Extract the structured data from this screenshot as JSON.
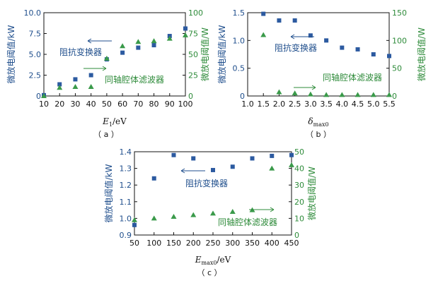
{
  "colors": {
    "primary": "#2c5aa0",
    "secondary": "#3a9a4a"
  },
  "chart_data": [
    {
      "type": "scatter",
      "caption": "（ a ）",
      "xlabel": {
        "main": "E",
        "sub": "1",
        "unit": "/eV"
      },
      "ylabel_left": "微放电阈值/kW",
      "ylabel_right": "微放电阈值/W",
      "xlim": [
        10,
        100
      ],
      "ylim_left": [
        0,
        10
      ],
      "ylim_right": [
        0,
        100
      ],
      "x_ticks": [
        "10",
        "20",
        "30",
        "40",
        "50",
        "60",
        "70",
        "80",
        "90",
        "100"
      ],
      "y_left_ticks": [
        "0",
        "2.5",
        "5.0",
        "7.5",
        "10.0"
      ],
      "y_right_ticks": [
        "0",
        "25",
        "50",
        "75",
        "100"
      ],
      "series": [
        {
          "name": "阻抗变换器",
          "axis": "left",
          "marker": "square",
          "x": [
            10,
            20,
            30,
            40,
            50,
            60,
            70,
            80,
            90,
            100
          ],
          "y": [
            0.1,
            1.4,
            2.0,
            2.5,
            4.4,
            5.2,
            5.8,
            6.1,
            7.2,
            8.1
          ]
        },
        {
          "name": "同轴腔体滤波器",
          "axis": "right",
          "marker": "triangle",
          "x": [
            10,
            20,
            30,
            40,
            50,
            60,
            70,
            80,
            90,
            100
          ],
          "y": [
            0,
            10,
            11,
            11,
            45,
            60,
            65,
            66,
            69,
            73
          ]
        }
      ]
    },
    {
      "type": "scatter",
      "caption": "（ b ）",
      "xlabel": {
        "main": "δ",
        "sub": "max0",
        "unit": ""
      },
      "ylabel_left": "微放电阈值/kW",
      "ylabel_right": "微放电阈值/W",
      "xlim": [
        1.0,
        5.5
      ],
      "ylim_left": [
        0,
        1.5
      ],
      "ylim_right": [
        0,
        150
      ],
      "x_ticks": [
        "1.0",
        "1.5",
        "2.0",
        "2.5",
        "3.0",
        "3.5",
        "4.0",
        "4.5",
        "5.0",
        "5.5"
      ],
      "y_left_ticks": [
        "0",
        "0.5",
        "1.0",
        "1.5"
      ],
      "y_right_ticks": [
        "0",
        "50",
        "100",
        "150"
      ],
      "series": [
        {
          "name": "阻抗变换器",
          "axis": "left",
          "marker": "square",
          "x": [
            1.5,
            2.0,
            2.5,
            3.0,
            3.5,
            4.0,
            4.5,
            5.0,
            5.5
          ],
          "y": [
            1.48,
            1.36,
            1.36,
            1.09,
            1.0,
            0.87,
            0.84,
            0.75,
            0.72
          ]
        },
        {
          "name": "同轴腔体滤波器",
          "axis": "right",
          "marker": "triangle",
          "x": [
            1.5,
            2.0,
            2.5,
            3.0,
            3.5,
            4.0,
            4.5,
            5.0,
            5.5
          ],
          "y": [
            110,
            7,
            5,
            3,
            2,
            2,
            2,
            2,
            2
          ]
        }
      ]
    },
    {
      "type": "scatter",
      "caption": "（ c ）",
      "xlabel": {
        "main": "E",
        "sub": "max0",
        "unit": "/eV"
      },
      "ylabel_left": "微放电阈值/kW",
      "ylabel_right": "微放电阈值/W",
      "xlim": [
        50,
        450
      ],
      "ylim_left": [
        0.9,
        1.4
      ],
      "ylim_right": [
        0,
        50
      ],
      "x_ticks": [
        "50",
        "100",
        "150",
        "200",
        "250",
        "300",
        "350",
        "400",
        "450"
      ],
      "y_left_ticks": [
        "0.9",
        "1.0",
        "1.1",
        "1.2",
        "1.3",
        "1.4"
      ],
      "y_right_ticks": [
        "0",
        "10",
        "20",
        "30",
        "40",
        "50"
      ],
      "series": [
        {
          "name": "阻抗变换器",
          "axis": "left",
          "marker": "square",
          "x": [
            50,
            100,
            150,
            200,
            250,
            300,
            350,
            400,
            450
          ],
          "y": [
            0.96,
            1.24,
            1.38,
            1.36,
            1.29,
            1.31,
            1.36,
            1.375,
            1.38
          ]
        },
        {
          "name": "同轴腔体滤波器",
          "axis": "right",
          "marker": "triangle",
          "x": [
            50,
            100,
            150,
            200,
            250,
            300,
            350,
            400,
            450
          ],
          "y": [
            9,
            10,
            11,
            12,
            13,
            14,
            15,
            40,
            42
          ]
        }
      ]
    }
  ]
}
